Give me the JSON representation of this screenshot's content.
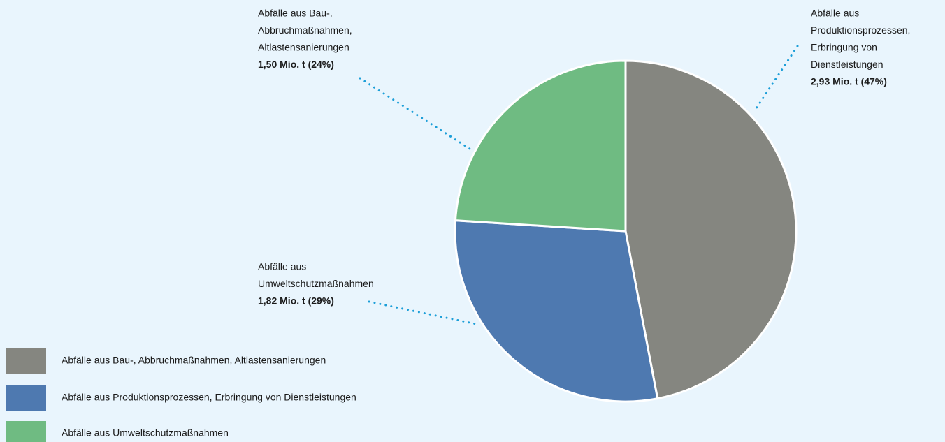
{
  "chart_data": {
    "type": "pie",
    "categories": [
      "Abfälle aus  Bau-, Abbruchmaßnahmen, Altlastensanierungen",
      "Abfälle aus Produktionsprozessen, Erbringung von Dienstleistungen",
      "Abfälle aus Umweltschutzmaßnahmen"
    ],
    "values": [
      47,
      29,
      24
    ],
    "colors": [
      "#858680",
      "#4e79b0",
      "#6fbb82"
    ],
    "value_labels": [
      "2,93 Mio. t (47%)",
      "1,82 Mio. t (29%)",
      "1,50 Mio. t (24%)"
    ],
    "slice_labels": [
      [
        "Abfälle aus",
        "Produktionsprozessen,",
        "Erbringung von",
        "Dienstleistungen"
      ],
      [
        "Abfälle aus",
        "Umweltschutzmaßnahmen"
      ],
      [
        "Abfälle aus  Bau-,",
        "Abbruchmaßnahmen,",
        "Altlastensanierungen"
      ]
    ]
  }
}
